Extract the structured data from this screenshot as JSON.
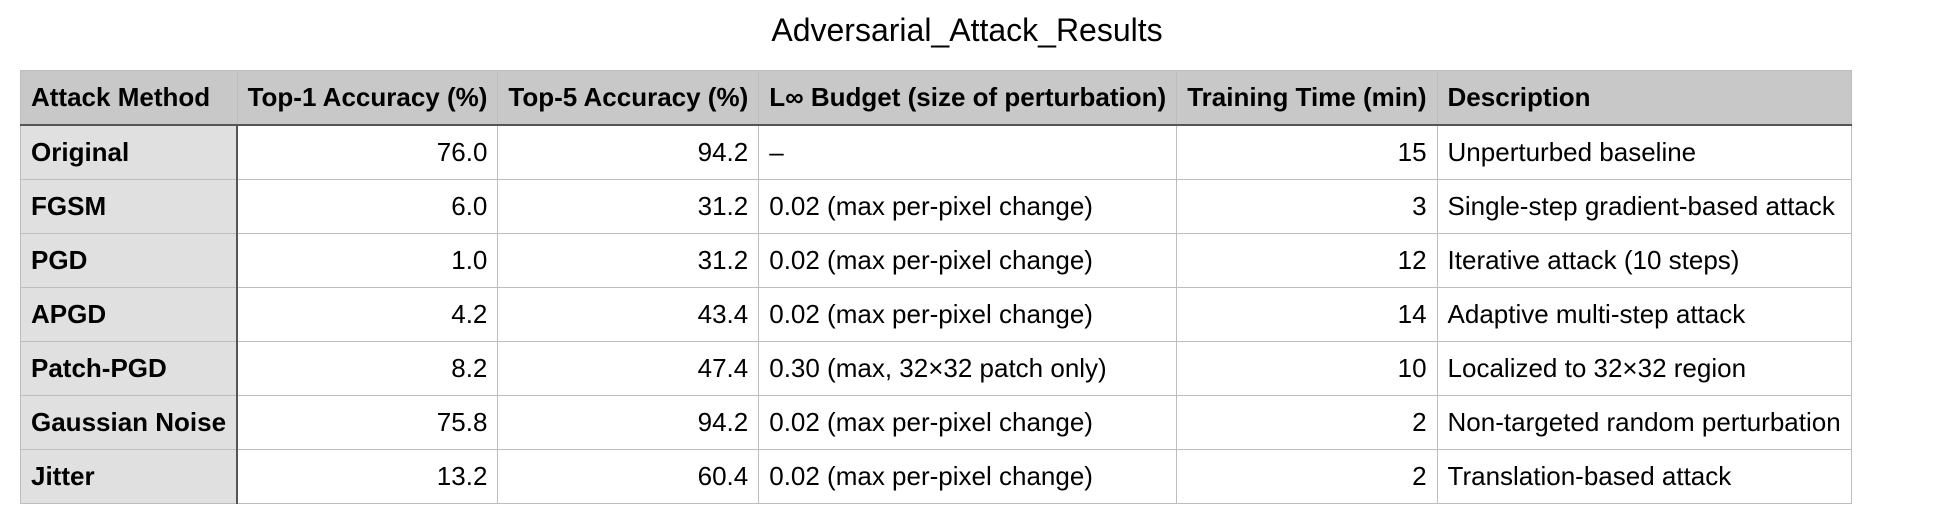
{
  "chart_data": {
    "type": "table",
    "title": "Adversarial_Attack_Results",
    "columns": [
      "Attack Method",
      "Top-1 Accuracy (%)",
      "Top-5 Accuracy (%)",
      "L∞ Budget (size of perturbation)",
      "Training Time (min)",
      "Description"
    ],
    "rows": [
      [
        "Original",
        "76.0",
        "94.2",
        "–",
        "15",
        "Unperturbed baseline"
      ],
      [
        "FGSM",
        "6.0",
        "31.2",
        "0.02 (max per-pixel change)",
        "3",
        "Single-step gradient-based attack"
      ],
      [
        "PGD",
        "1.0",
        "31.2",
        "0.02 (max per-pixel change)",
        "12",
        "Iterative attack (10 steps)"
      ],
      [
        "APGD",
        "4.2",
        "43.4",
        "0.02 (max per-pixel change)",
        "14",
        "Adaptive multi-step attack"
      ],
      [
        "Patch-PGD",
        "8.2",
        "47.4",
        "0.30 (max, 32×32 patch only)",
        "10",
        "Localized to 32×32 region"
      ],
      [
        "Gaussian Noise",
        "75.8",
        "94.2",
        "0.02 (max per-pixel change)",
        "2",
        "Non-targeted random perturbation"
      ],
      [
        "Jitter",
        "13.2",
        "60.4",
        "0.02 (max per-pixel change)",
        "2",
        "Translation-based attack"
      ]
    ]
  }
}
